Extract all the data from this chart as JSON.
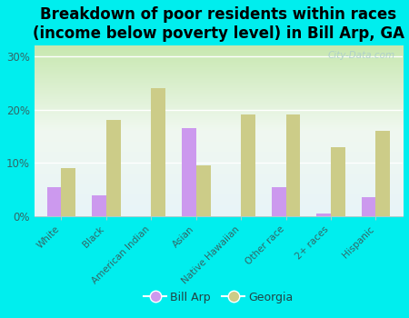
{
  "categories": [
    "White",
    "Black",
    "American Indian",
    "Asian",
    "Native Hawaiian",
    "Other race",
    "2+ races",
    "Hispanic"
  ],
  "bill_arp": [
    5.5,
    4.0,
    0.0,
    16.5,
    0.0,
    5.5,
    0.5,
    3.5
  ],
  "georgia": [
    9.0,
    18.0,
    24.0,
    9.5,
    19.0,
    19.0,
    13.0,
    16.0
  ],
  "bill_arp_color": "#cc99ee",
  "georgia_color": "#cccc88",
  "background_color": "#00eeee",
  "title": "Breakdown of poor residents within races\n(income below poverty level) in Bill Arp, GA",
  "title_fontsize": 12,
  "ylabel_ticks": [
    "0%",
    "10%",
    "20%",
    "30%"
  ],
  "yticks": [
    0,
    10,
    20,
    30
  ],
  "ylim": [
    0,
    32
  ],
  "watermark": "City-Data.com",
  "bar_width": 0.32,
  "legend_bill_arp": "Bill Arp",
  "legend_georgia": "Georgia"
}
